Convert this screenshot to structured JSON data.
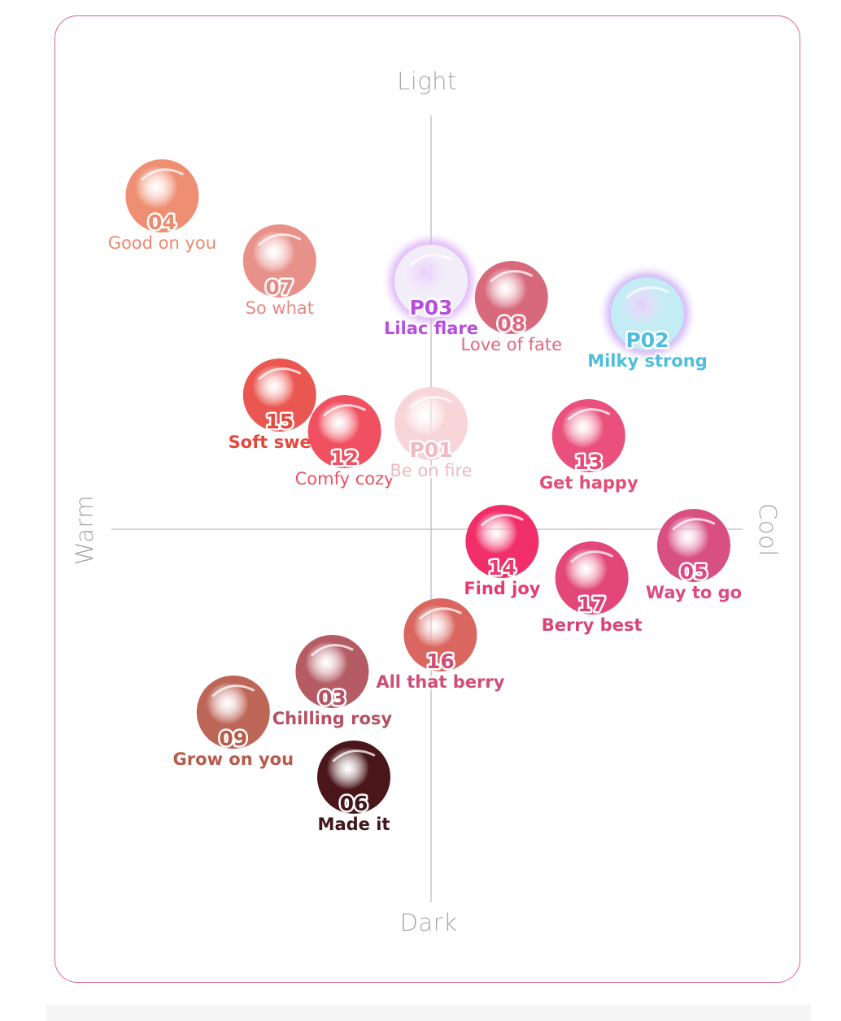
{
  "chart_data": {
    "type": "scatter",
    "title": "",
    "xlabel": "",
    "ylabel": "",
    "axes": {
      "top_label": "Light",
      "bottom_label": "Dark",
      "left_label": "Warm",
      "right_label": "Cool",
      "x_range": [
        -10,
        10
      ],
      "y_range": [
        -10,
        10
      ],
      "x_meaning": "warm (negative) to cool (positive)",
      "y_meaning": "dark (negative) to light (positive)"
    },
    "grid": false,
    "points": [
      {
        "code": "04",
        "name": "Good on you",
        "x": -8.7,
        "y": 8.2,
        "color": "#ee8f73",
        "label_color": "#ea8a70",
        "highlight": ""
      },
      {
        "code": "07",
        "name": "So what",
        "x": -4.9,
        "y": 6.6,
        "color": "#e8908a",
        "label_color": "#e68a84",
        "highlight": ""
      },
      {
        "code": "P03",
        "name": "Lilac flare",
        "x": 0.0,
        "y": 6.1,
        "color": "#f2eef9",
        "label_color": "#b64fdc",
        "highlight": "#d9a9f6"
      },
      {
        "code": "08",
        "name": "Love of fate",
        "x": 2.6,
        "y": 5.7,
        "color": "#d8687b",
        "label_color": "#e26781",
        "highlight": ""
      },
      {
        "code": "P02",
        "name": "Milky strong",
        "x": 7.0,
        "y": 5.3,
        "color": "#c3ecf5",
        "label_color": "#4fbedd",
        "highlight": "#c9a7f5"
      },
      {
        "code": "15",
        "name": "Soft sweet",
        "x": -4.9,
        "y": 3.3,
        "color": "#ea5650",
        "label_color": "#e4483f",
        "highlight": ""
      },
      {
        "code": "12",
        "name": "Comfy cozy",
        "x": -2.8,
        "y": 2.4,
        "color": "#f0505f",
        "label_color": "#ec5264",
        "highlight": ""
      },
      {
        "code": "P01",
        "name": "Be on fire",
        "x": 0.0,
        "y": 2.6,
        "color": "#f7d5d9",
        "label_color": "#f0b8c0",
        "highlight": ""
      },
      {
        "code": "13",
        "name": "Get happy",
        "x": 5.1,
        "y": 2.3,
        "color": "#e9507b",
        "label_color": "#e24c77",
        "highlight": ""
      },
      {
        "code": "14",
        "name": "Find joy",
        "x": 2.3,
        "y": -0.3,
        "color": "#f02f6a",
        "label_color": "#e63a70",
        "highlight": ""
      },
      {
        "code": "05",
        "name": "Way to go",
        "x": 8.5,
        "y": -0.4,
        "color": "#d84f82",
        "label_color": "#dc4a82",
        "highlight": ""
      },
      {
        "code": "17",
        "name": "Berry best",
        "x": 5.2,
        "y": -1.2,
        "color": "#e3477a",
        "label_color": "#d74477",
        "highlight": ""
      },
      {
        "code": "16",
        "name": "All that berry",
        "x": 0.3,
        "y": -2.6,
        "color": "#d9675f",
        "label_color": "#cf4e76",
        "highlight": ""
      },
      {
        "code": "03",
        "name": "Chilling rosy",
        "x": -3.2,
        "y": -3.5,
        "color": "#b45b64",
        "label_color": "#b45162",
        "highlight": ""
      },
      {
        "code": "09",
        "name": "Grow on you",
        "x": -6.4,
        "y": -4.5,
        "color": "#bd6556",
        "label_color": "#b85a4a",
        "highlight": ""
      },
      {
        "code": "06",
        "name": "Made it",
        "x": -2.5,
        "y": -6.1,
        "color": "#4a1619",
        "label_color": "#42161a",
        "highlight": ""
      }
    ]
  }
}
